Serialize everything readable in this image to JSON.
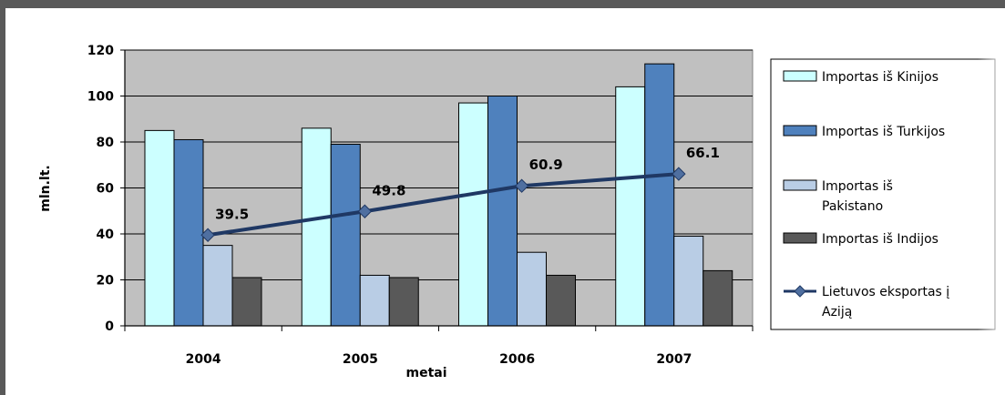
{
  "chart_data": {
    "type": "bar",
    "categories": [
      "2004",
      "2005",
      "2006",
      "2007"
    ],
    "xlabel": "metai",
    "ylabel": "mln.lt.",
    "ylim": [
      0,
      120
    ],
    "yticks": [
      0,
      20,
      40,
      60,
      80,
      100,
      120
    ],
    "grid": true,
    "legend_position": "right",
    "series": [
      {
        "name": "Importas iš Kinijos",
        "type": "bar",
        "color": "#ccffff",
        "values": [
          85,
          86,
          97,
          104
        ]
      },
      {
        "name": "Importas iš Turkijos",
        "type": "bar",
        "color": "#4f81bd",
        "values": [
          81,
          79,
          100,
          114
        ]
      },
      {
        "name": "Importas iš Pakistano",
        "type": "bar",
        "color": "#b9cde5",
        "values": [
          35,
          22,
          32,
          39
        ]
      },
      {
        "name": "Importas iš Indijos",
        "type": "bar",
        "color": "#595959",
        "values": [
          21,
          21,
          22,
          24
        ]
      },
      {
        "name": "Lietuvos eksportas į Aziją",
        "type": "line",
        "color": "#1f3864",
        "values": [
          39.5,
          49.8,
          60.9,
          66.1
        ],
        "data_labels": [
          "39.5",
          "49.8",
          "60.9",
          "66.1"
        ]
      }
    ]
  }
}
